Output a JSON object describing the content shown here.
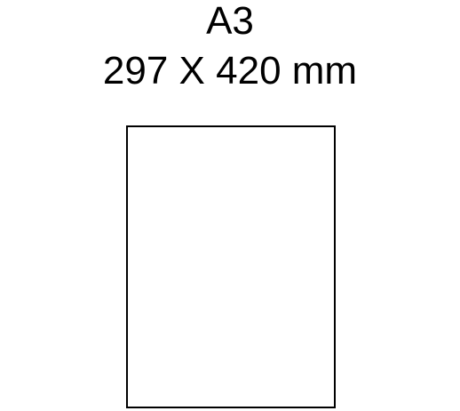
{
  "paper": {
    "size_name": "A3",
    "dimensions": "297 X 420 mm"
  },
  "colors": {
    "background": "#ffffff",
    "stroke": "#000000"
  }
}
